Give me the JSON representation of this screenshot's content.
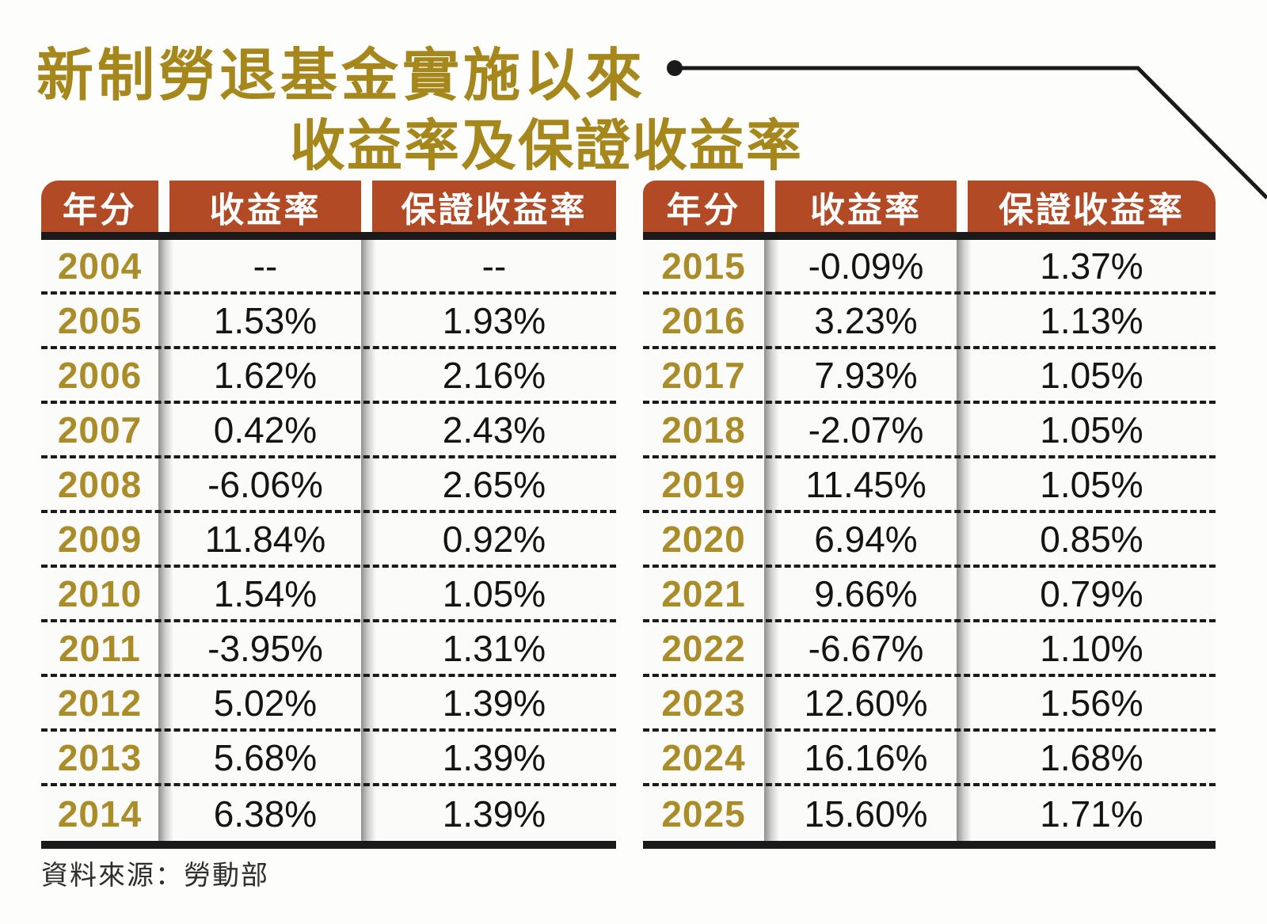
{
  "title": {
    "line1": "新制勞退基金實施以來",
    "line2": "收益率及保證收益率"
  },
  "columns": [
    "年分",
    "收益率",
    "保證收益率"
  ],
  "left_table": {
    "rows": [
      [
        "2004",
        "--",
        "--"
      ],
      [
        "2005",
        "1.53%",
        "1.93%"
      ],
      [
        "2006",
        "1.62%",
        "2.16%"
      ],
      [
        "2007",
        "0.42%",
        "2.43%"
      ],
      [
        "2008",
        "-6.06%",
        "2.65%"
      ],
      [
        "2009",
        "11.84%",
        "0.92%"
      ],
      [
        "2010",
        "1.54%",
        "1.05%"
      ],
      [
        "2011",
        "-3.95%",
        "1.31%"
      ],
      [
        "2012",
        "5.02%",
        "1.39%"
      ],
      [
        "2013",
        "5.68%",
        "1.39%"
      ],
      [
        "2014",
        "6.38%",
        "1.39%"
      ]
    ]
  },
  "right_table": {
    "rows": [
      [
        "2015",
        "-0.09%",
        "1.37%"
      ],
      [
        "2016",
        "3.23%",
        "1.13%"
      ],
      [
        "2017",
        "7.93%",
        "1.05%"
      ],
      [
        "2018",
        "-2.07%",
        "1.05%"
      ],
      [
        "2019",
        "11.45%",
        "1.05%"
      ],
      [
        "2020",
        "6.94%",
        "0.85%"
      ],
      [
        "2021",
        "9.66%",
        "0.79%"
      ],
      [
        "2022",
        "-6.67%",
        "1.10%"
      ],
      [
        "2023",
        "12.60%",
        "1.56%"
      ],
      [
        "2024",
        "16.16%",
        "1.68%"
      ],
      [
        "2025",
        "15.60%",
        "1.71%"
      ]
    ]
  },
  "source_note": "資料來源：勞動部",
  "colors": {
    "header_bg": "#B14A25",
    "title_gold": "#A5871C",
    "year_gold": "#AA8C28",
    "line_black": "#1A1A1A"
  },
  "chart_data": {
    "type": "table",
    "title": "新制勞退基金實施以來收益率及保證收益率",
    "columns": [
      "年分",
      "收益率",
      "保證收益率"
    ],
    "rows": [
      [
        "2004",
        "--",
        "--"
      ],
      [
        "2005",
        "1.53%",
        "1.93%"
      ],
      [
        "2006",
        "1.62%",
        "2.16%"
      ],
      [
        "2007",
        "0.42%",
        "2.43%"
      ],
      [
        "2008",
        "-6.06%",
        "2.65%"
      ],
      [
        "2009",
        "11.84%",
        "0.92%"
      ],
      [
        "2010",
        "1.54%",
        "1.05%"
      ],
      [
        "2011",
        "-3.95%",
        "1.31%"
      ],
      [
        "2012",
        "5.02%",
        "1.39%"
      ],
      [
        "2013",
        "5.68%",
        "1.39%"
      ],
      [
        "2014",
        "6.38%",
        "1.39%"
      ],
      [
        "2015",
        "-0.09%",
        "1.37%"
      ],
      [
        "2016",
        "3.23%",
        "1.13%"
      ],
      [
        "2017",
        "7.93%",
        "1.05%"
      ],
      [
        "2018",
        "-2.07%",
        "1.05%"
      ],
      [
        "2019",
        "11.45%",
        "1.05%"
      ],
      [
        "2020",
        "6.94%",
        "0.85%"
      ],
      [
        "2021",
        "9.66%",
        "0.79%"
      ],
      [
        "2022",
        "-6.67%",
        "1.10%"
      ],
      [
        "2023",
        "12.60%",
        "1.56%"
      ],
      [
        "2024",
        "16.16%",
        "1.68%"
      ],
      [
        "2025",
        "15.60%",
        "1.71%"
      ]
    ],
    "source": "資料來源：勞動部"
  }
}
